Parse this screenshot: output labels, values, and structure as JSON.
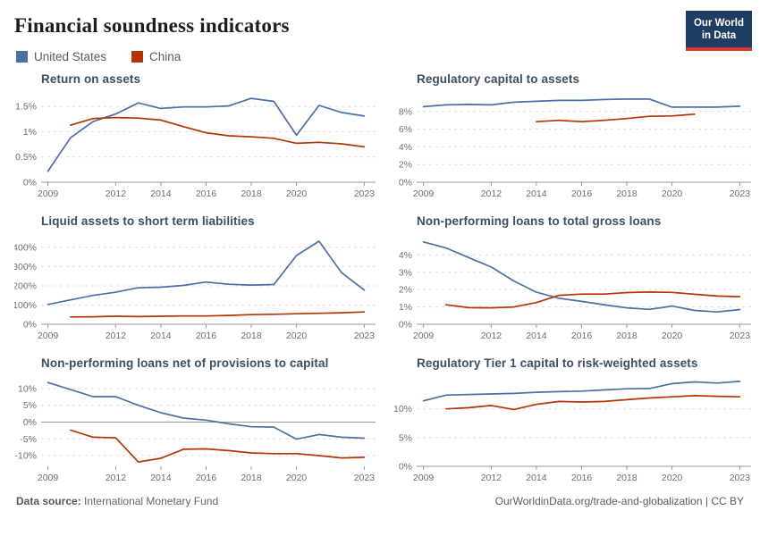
{
  "page": {
    "title": "Financial soundness indicators"
  },
  "logo": {
    "line1": "Our World",
    "line2": "in Data"
  },
  "legend": [
    {
      "label": "United States",
      "color_key": "us"
    },
    {
      "label": "China",
      "color_key": "china"
    }
  ],
  "colors": {
    "us": "#4C6FA8",
    "china": "#B13507",
    "grid": "#dcdcdc",
    "axis": "#999999",
    "tick_text": "#6e6e6e",
    "logo_bg": "#1d3d63",
    "logo_stripe": "#d7382a"
  },
  "footer": {
    "source_label": "Data source:",
    "source": "International Monetary Fund",
    "credit": "OurWorldinData.org/trade-and-globalization | CC BY"
  },
  "chart_data": [
    {
      "type": "line",
      "title": "Return on assets",
      "x_domain": [
        2008.7,
        2023.5
      ],
      "x_ticks": [
        2009,
        2012,
        2014,
        2016,
        2018,
        2020,
        2023
      ],
      "ylim": [
        0,
        1.75
      ],
      "y_ticks": [
        {
          "value": 0,
          "label": "0%"
        },
        {
          "value": 0.5,
          "label": "0.5%"
        },
        {
          "value": 1,
          "label": "1%"
        },
        {
          "value": 1.5,
          "label": "1.5%"
        }
      ],
      "series": [
        {
          "name": "United States",
          "color": "us",
          "start_year": 2009,
          "values": [
            0.22,
            0.88,
            1.2,
            1.35,
            1.57,
            1.46,
            1.49,
            1.49,
            1.51,
            1.66,
            1.6,
            0.93,
            1.52,
            1.38,
            1.31
          ]
        },
        {
          "name": "China",
          "color": "china",
          "start_year": 2010,
          "values": [
            1.13,
            1.26,
            1.28,
            1.27,
            1.23,
            1.1,
            0.98,
            0.92,
            0.9,
            0.87,
            0.77,
            0.79,
            0.76,
            0.7
          ]
        }
      ]
    },
    {
      "type": "line",
      "title": "Regulatory capital to assets",
      "x_domain": [
        2008.7,
        2023.5
      ],
      "x_ticks": [
        2009,
        2012,
        2014,
        2016,
        2018,
        2020,
        2023
      ],
      "ylim": [
        0,
        10
      ],
      "y_ticks": [
        {
          "value": 0,
          "label": "0%"
        },
        {
          "value": 2,
          "label": "2%"
        },
        {
          "value": 4,
          "label": "4%"
        },
        {
          "value": 6,
          "label": "6%"
        },
        {
          "value": 8,
          "label": "8%"
        }
      ],
      "series": [
        {
          "name": "United States",
          "color": "us",
          "start_year": 2009,
          "values": [
            8.55,
            8.75,
            8.8,
            8.75,
            9.05,
            9.15,
            9.25,
            9.25,
            9.35,
            9.4,
            9.4,
            8.5,
            8.5,
            8.5,
            8.6
          ]
        },
        {
          "name": "China",
          "color": "china",
          "start_year": 2014,
          "values": [
            6.85,
            7.0,
            6.85,
            7.0,
            7.2,
            7.45,
            7.5,
            7.7
          ]
        }
      ]
    },
    {
      "type": "line",
      "title": "Liquid assets to short term liabilities",
      "x_domain": [
        2008.7,
        2023.5
      ],
      "x_ticks": [
        2009,
        2012,
        2014,
        2016,
        2018,
        2020,
        2023
      ],
      "ylim": [
        0,
        460
      ],
      "y_ticks": [
        {
          "value": 0,
          "label": "0%"
        },
        {
          "value": 100,
          "label": "100%"
        },
        {
          "value": 200,
          "label": "200%"
        },
        {
          "value": 300,
          "label": "300%"
        },
        {
          "value": 400,
          "label": "400%"
        }
      ],
      "series": [
        {
          "name": "United States",
          "color": "us",
          "start_year": 2009,
          "values": [
            103,
            127,
            150,
            167,
            190,
            193,
            202,
            220,
            208,
            204,
            207,
            358,
            432,
            268,
            178
          ]
        },
        {
          "name": "China",
          "color": "china",
          "start_year": 2010,
          "values": [
            38,
            39,
            42,
            40,
            42,
            43,
            43,
            46,
            50,
            52,
            55,
            57,
            60,
            64
          ]
        }
      ]
    },
    {
      "type": "line",
      "title": "Non-performing loans to total gross loans",
      "x_domain": [
        2008.7,
        2023.5
      ],
      "x_ticks": [
        2009,
        2012,
        2014,
        2016,
        2018,
        2020,
        2023
      ],
      "ylim": [
        0,
        5.1
      ],
      "y_ticks": [
        {
          "value": 0,
          "label": "0%"
        },
        {
          "value": 1,
          "label": "1%"
        },
        {
          "value": 2,
          "label": "2%"
        },
        {
          "value": 3,
          "label": "3%"
        },
        {
          "value": 4,
          "label": "4%"
        }
      ],
      "series": [
        {
          "name": "United States",
          "color": "us",
          "start_year": 2009,
          "values": [
            4.75,
            4.4,
            3.85,
            3.3,
            2.5,
            1.85,
            1.5,
            1.32,
            1.13,
            0.95,
            0.86,
            1.05,
            0.8,
            0.71,
            0.85
          ]
        },
        {
          "name": "China",
          "color": "china",
          "start_year": 2010,
          "values": [
            1.13,
            0.96,
            0.95,
            1.0,
            1.25,
            1.67,
            1.74,
            1.74,
            1.83,
            1.86,
            1.84,
            1.73,
            1.63,
            1.59
          ]
        }
      ]
    },
    {
      "type": "line",
      "title": "Non-performing loans net of provisions to capital",
      "x_domain": [
        2008.7,
        2023.5
      ],
      "x_ticks": [
        2009,
        2012,
        2014,
        2016,
        2018,
        2020,
        2023
      ],
      "ylim": [
        -13.2,
        13.2
      ],
      "y_ticks": [
        {
          "value": -10,
          "label": "-10%"
        },
        {
          "value": -5,
          "label": "-5%"
        },
        {
          "value": 0,
          "label": "0%"
        },
        {
          "value": 5,
          "label": "5%"
        },
        {
          "value": 10,
          "label": "10%"
        }
      ],
      "series": [
        {
          "name": "United States",
          "color": "us",
          "start_year": 2009,
          "values": [
            11.8,
            9.7,
            7.6,
            7.6,
            5.0,
            2.8,
            1.2,
            0.6,
            -0.5,
            -1.4,
            -1.5,
            -5.1,
            -3.7,
            -4.5,
            -4.8
          ]
        },
        {
          "name": "China",
          "color": "china",
          "start_year": 2010,
          "values": [
            -2.4,
            -4.5,
            -4.7,
            -11.9,
            -10.8,
            -8.1,
            -8.0,
            -8.5,
            -9.2,
            -9.4,
            -9.4,
            -10.0,
            -10.7,
            -10.5
          ]
        }
      ]
    },
    {
      "type": "line",
      "title": "Regulatory Tier 1 capital to risk-weighted assets",
      "x_domain": [
        2008.7,
        2023.5
      ],
      "x_ticks": [
        2009,
        2012,
        2014,
        2016,
        2018,
        2020,
        2023
      ],
      "ylim": [
        0,
        15.4
      ],
      "y_ticks": [
        {
          "value": 0,
          "label": "0%"
        },
        {
          "value": 5,
          "label": "5%"
        },
        {
          "value": 10,
          "label": "10%"
        }
      ],
      "series": [
        {
          "name": "United States",
          "color": "us",
          "start_year": 2009,
          "values": [
            11.4,
            12.4,
            12.5,
            12.6,
            12.7,
            12.9,
            13.0,
            13.1,
            13.3,
            13.5,
            13.55,
            14.4,
            14.7,
            14.5,
            14.8
          ]
        },
        {
          "name": "China",
          "color": "china",
          "start_year": 2010,
          "values": [
            10.0,
            10.2,
            10.6,
            9.9,
            10.8,
            11.3,
            11.2,
            11.3,
            11.6,
            11.9,
            12.1,
            12.3,
            12.2,
            12.1
          ]
        }
      ]
    }
  ]
}
